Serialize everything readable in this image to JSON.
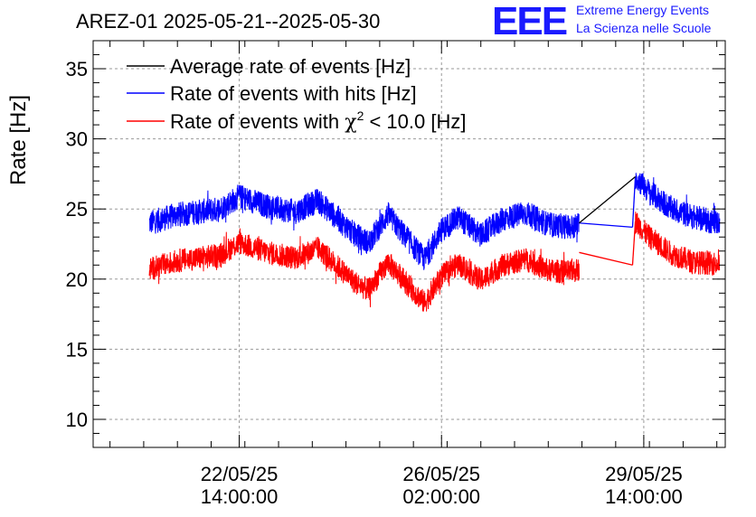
{
  "header": {
    "title": "AREZ-01 2025-05-21--2025-05-30",
    "logo_text": "EEE",
    "logo_line1": "Extreme Energy Events",
    "logo_line2": "La Scienza nelle Scuole"
  },
  "colors": {
    "average": "#000000",
    "hits": "#0000ff",
    "chi2": "#ff0000",
    "grid": "#9a9a9a",
    "logo": "#1a1aff"
  },
  "chart_data": {
    "type": "line",
    "ylabel": "Rate [Hz]",
    "xlabel": "",
    "ylim": [
      8,
      37
    ],
    "yticks": [
      10,
      15,
      20,
      25,
      30,
      35
    ],
    "xlim_hours": [
      0,
      225
    ],
    "grid": true,
    "legend_position": "top-left",
    "xticks": [
      {
        "hour": 52,
        "line1": "22/05/25",
        "line2": "14:00:00"
      },
      {
        "hour": 124,
        "line1": "26/05/25",
        "line2": "02:00:00"
      },
      {
        "hour": 196,
        "line1": "29/05/25",
        "line2": "14:00:00"
      }
    ],
    "legend": [
      {
        "key": "average",
        "label": "Average rate of events [Hz]"
      },
      {
        "key": "hits",
        "label": "Rate of events with hits [Hz]"
      },
      {
        "key": "chi2",
        "label_prefix": "Rate of events with ",
        "label_symbol": "χ",
        "label_sup": "2",
        "label_suffix": " < 10.0 [Hz]"
      }
    ],
    "series": [
      {
        "key": "hits",
        "name": "Rate of events with hits [Hz]",
        "noise": 0.9,
        "segments": [
          {
            "points": [
              [
                20,
                24.0
              ],
              [
                30,
                24.6
              ],
              [
                45,
                25.0
              ],
              [
                52,
                25.9
              ],
              [
                62,
                25.2
              ],
              [
                72,
                24.8
              ],
              [
                80,
                25.6
              ],
              [
                86,
                24.5
              ],
              [
                93,
                23.2
              ],
              [
                98,
                22.6
              ],
              [
                105,
                24.6
              ],
              [
                112,
                22.8
              ],
              [
                118,
                21.4
              ],
              [
                124,
                23.5
              ],
              [
                130,
                24.4
              ],
              [
                138,
                23.1
              ],
              [
                146,
                24.3
              ],
              [
                154,
                24.7
              ],
              [
                162,
                23.9
              ],
              [
                170,
                23.7
              ],
              [
                173,
                23.9
              ]
            ]
          },
          {
            "points": [
              [
                193,
                27.3
              ],
              [
                198,
                26.2
              ],
              [
                206,
                25.0
              ],
              [
                214,
                24.4
              ],
              [
                223,
                24.0
              ]
            ]
          }
        ],
        "gap_line": [
          [
            173,
            24.0
          ],
          [
            192,
            23.7
          ]
        ],
        "jump": [
          [
            192,
            23.7
          ],
          [
            193,
            27.3
          ]
        ]
      },
      {
        "key": "chi2",
        "name": "Rate of events with χ2 < 10.0 [Hz]",
        "noise": 0.85,
        "segments": [
          {
            "points": [
              [
                20,
                20.7
              ],
              [
                30,
                21.3
              ],
              [
                45,
                21.7
              ],
              [
                52,
                22.6
              ],
              [
                62,
                21.9
              ],
              [
                72,
                21.5
              ],
              [
                80,
                22.2
              ],
              [
                86,
                21.1
              ],
              [
                93,
                19.8
              ],
              [
                98,
                19.2
              ],
              [
                105,
                21.2
              ],
              [
                112,
                19.6
              ],
              [
                118,
                18.3
              ],
              [
                124,
                20.2
              ],
              [
                130,
                21.1
              ],
              [
                138,
                19.9
              ],
              [
                146,
                21.0
              ],
              [
                154,
                21.4
              ],
              [
                162,
                20.6
              ],
              [
                170,
                20.5
              ],
              [
                173,
                20.7
              ]
            ]
          },
          {
            "points": [
              [
                193,
                24.1
              ],
              [
                198,
                23.0
              ],
              [
                206,
                21.8
              ],
              [
                214,
                21.2
              ],
              [
                223,
                21.1
              ]
            ]
          }
        ],
        "gap_line": [
          [
            173,
            21.9
          ],
          [
            192,
            21.0
          ]
        ],
        "jump": [
          [
            192,
            21.0
          ],
          [
            193,
            24.1
          ]
        ]
      },
      {
        "key": "average",
        "name": "Average rate of events [Hz]",
        "segments": [],
        "gap_line": [
          [
            173,
            24.0
          ],
          [
            193,
            27.3
          ]
        ]
      }
    ]
  }
}
